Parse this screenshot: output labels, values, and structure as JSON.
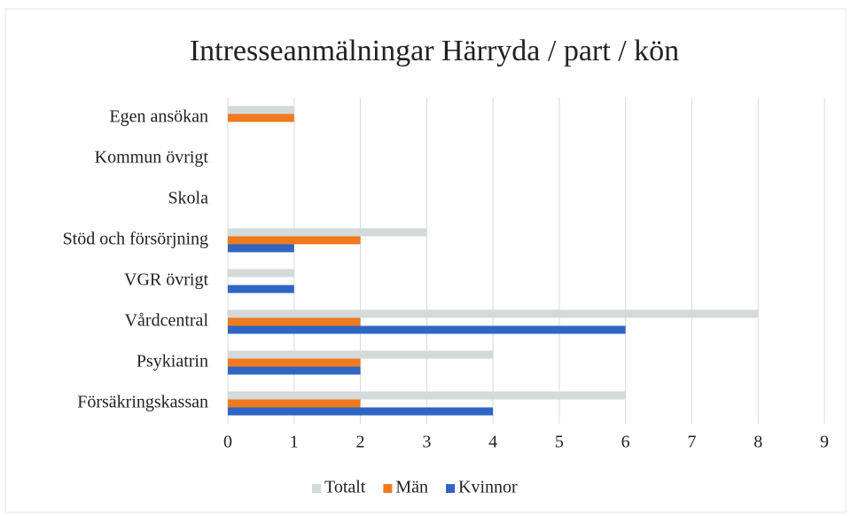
{
  "chart_data": {
    "type": "hbar",
    "title": "Intresseanmälningar Härryda / part / kön",
    "categories": [
      "Egen ansökan",
      "Kommun övrigt",
      "Skola",
      "Stöd och försörjning",
      "VGR övrigt",
      "Vårdcentral",
      "Psykiatrin",
      "Försäkringskassan"
    ],
    "series": [
      {
        "name": "Totalt",
        "color": "#d3dad9",
        "values": [
          1,
          0,
          0,
          3,
          1,
          8,
          4,
          6
        ]
      },
      {
        "name": "Män",
        "color": "#f07a1e",
        "values": [
          1,
          0,
          0,
          2,
          0,
          2,
          2,
          2
        ]
      },
      {
        "name": "Kvinnor",
        "color": "#2f66c4",
        "values": [
          0,
          0,
          0,
          1,
          1,
          6,
          2,
          4
        ]
      }
    ],
    "xlim": [
      0,
      9
    ],
    "xticks": [
      0,
      1,
      2,
      3,
      4,
      5,
      6,
      7,
      8,
      9
    ],
    "grid": true,
    "legend": "bottom"
  }
}
